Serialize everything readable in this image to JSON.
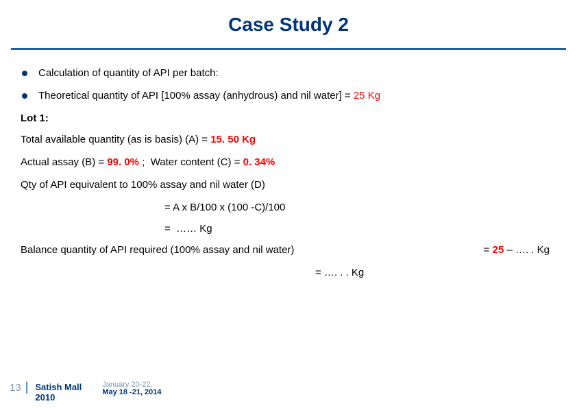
{
  "title": "Case Study 2",
  "bullets": [
    {
      "text": "Calculation of quantity of API per batch:"
    },
    {
      "prefix": "Theoretical quantity of API [100% assay (anhydrous) and nil water] = ",
      "value": "25 Kg"
    }
  ],
  "lot": {
    "heading": "Lot 1:",
    "line_total_prefix": "Total available quantity (as is basis) (A) = ",
    "line_total_value": "15. 50 Kg",
    "assay_prefix": "Actual assay (B) = ",
    "assay_value": "99. 0% ",
    "assay_sep": ";  Water content (C) = ",
    "water_value": "0. 34%",
    "qty_line": "Qty of API equivalent to 100% assay and nil water (D)",
    "formula1": "= A x B/100 x (100 -C)/100",
    "formula2": "=  …… Kg",
    "balance_label": "Balance quantity of API required (100% assay and nil water)",
    "balance_eq_prefix": "= ",
    "balance_eq_val": "25",
    "balance_eq_suffix": " – …. . Kg",
    "balance_kg": "= …. . . Kg"
  },
  "footer": {
    "page": "13",
    "author_line1": "Satish Mall",
    "author_line2": "2010",
    "date_top": "January 20-22,",
    "date_main": "May 18 -21, 2014"
  }
}
